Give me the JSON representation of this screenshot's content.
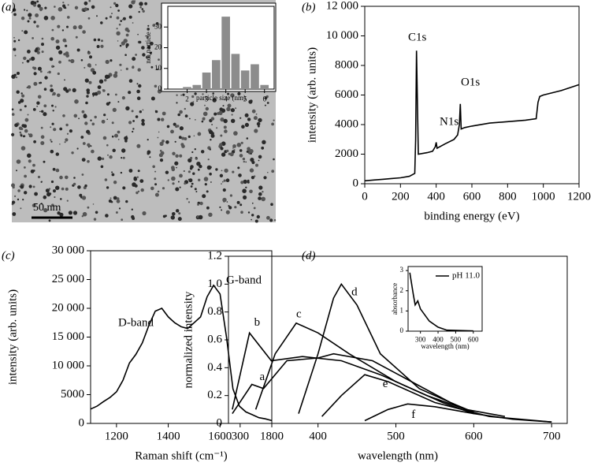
{
  "chart_data": [
    {
      "type": "histogram",
      "panel": "(a)",
      "scale_bar": "50 nm",
      "xlabel": "particle size (nm)",
      "ylabel": "no. particle",
      "bins": [
        1.75,
        2.25,
        2.75,
        3.25,
        3.75,
        4.25,
        4.75,
        5.25,
        5.75,
        6.25
      ],
      "values": [
        1,
        2,
        8,
        14,
        35,
        17,
        9,
        12,
        2
      ],
      "color": "#8c8c8c",
      "xlim": [
        1,
        6.5
      ],
      "xticks": [
        2,
        3,
        4,
        5,
        6
      ],
      "ylim": [
        0,
        40
      ],
      "yticks": [
        0,
        10,
        20,
        30
      ]
    },
    {
      "type": "line",
      "panel": "(b)",
      "xlabel": "binding energy (eV)",
      "ylabel": "intensity (arb. units)",
      "color": "#000000",
      "annotations": [
        "C1s",
        "N1s",
        "O1s"
      ],
      "x": [
        0,
        50,
        100,
        150,
        200,
        250,
        280,
        285,
        290,
        300,
        350,
        380,
        395,
        400,
        405,
        450,
        500,
        520,
        530,
        535,
        540,
        560,
        600,
        700,
        800,
        900,
        960,
        970,
        980,
        1000,
        1100,
        1200
      ],
      "values": [
        200,
        250,
        300,
        350,
        400,
        500,
        700,
        3000,
        9000,
        2000,
        2100,
        2200,
        2500,
        2800,
        2400,
        2700,
        3000,
        3300,
        4000,
        5400,
        3700,
        3800,
        3900,
        4100,
        4200,
        4300,
        4400,
        5500,
        5900,
        6000,
        6300,
        6700
      ],
      "xlim": [
        0,
        1200
      ],
      "xticks": [
        0,
        200,
        400,
        600,
        800,
        1000,
        1200
      ],
      "ylim": [
        0,
        12000
      ],
      "yticks": [
        0,
        2000,
        4000,
        6000,
        8000,
        {
          "value": 10000,
          "label": "10 000"
        },
        {
          "value": 12000,
          "label": "12 000"
        }
      ]
    },
    {
      "type": "line",
      "panel": "(c)",
      "xlabel": "Raman shift (cm⁻¹)",
      "ylabel": "intensity (arb. units)",
      "color": "#000000",
      "annotations": [
        "D-band",
        "G-band"
      ],
      "x": [
        1100,
        1125,
        1150,
        1175,
        1200,
        1225,
        1250,
        1275,
        1300,
        1325,
        1350,
        1375,
        1400,
        1425,
        1450,
        1475,
        1500,
        1525,
        1550,
        1575,
        1600,
        1625,
        1650,
        1675,
        1700,
        1725,
        1750,
        1775,
        1800
      ],
      "values": [
        2500,
        3000,
        3800,
        4500,
        5500,
        7500,
        10500,
        12000,
        14000,
        17000,
        19500,
        20000,
        18500,
        17500,
        16800,
        16500,
        17500,
        18500,
        22000,
        24000,
        22500,
        15000,
        6000,
        3000,
        2000,
        1500,
        1000,
        800,
        500
      ],
      "xlim": [
        1100,
        1800
      ],
      "xticks": [
        1200,
        1400,
        1600,
        1800
      ],
      "ylim": [
        0,
        30000
      ],
      "yticks": [
        0,
        5000,
        {
          "value": 10000,
          "label": "10 000"
        },
        {
          "value": 15000,
          "label": "15 000"
        },
        {
          "value": 20000,
          "label": "20 000"
        },
        {
          "value": 25000,
          "label": "25 000"
        },
        {
          "value": 30000,
          "label": "30 000"
        }
      ]
    },
    {
      "type": "line",
      "panel": "(d)",
      "xlabel": "wavelength (nm)",
      "ylabel": "normalized intensity",
      "series": [
        {
          "name": "a",
          "color": "#000000",
          "x": [
            290,
            315,
            330,
            360,
            400,
            420,
            470,
            520,
            570,
            600
          ],
          "values": [
            0.07,
            0.28,
            0.25,
            0.45,
            0.47,
            0.5,
            0.45,
            0.3,
            0.15,
            0.08
          ]
        },
        {
          "name": "b",
          "color": "#000000",
          "x": [
            290,
            312,
            340,
            380,
            430,
            480,
            540,
            590
          ],
          "values": [
            0.1,
            0.65,
            0.45,
            0.48,
            0.45,
            0.35,
            0.2,
            0.1
          ]
        },
        {
          "name": "c",
          "color": "#000000",
          "x": [
            320,
            345,
            372,
            400,
            440,
            500,
            560,
            600
          ],
          "values": [
            0.1,
            0.5,
            0.72,
            0.65,
            0.5,
            0.3,
            0.15,
            0.07
          ]
        },
        {
          "name": "d",
          "color": "#000000",
          "x": [
            375,
            400,
            420,
            430,
            450,
            480,
            530,
            590,
            640
          ],
          "values": [
            0.07,
            0.5,
            0.9,
            1.0,
            0.85,
            0.5,
            0.25,
            0.1,
            0.05
          ]
        },
        {
          "name": "e",
          "color": "#000000",
          "x": [
            405,
            430,
            460,
            490,
            550,
            620,
            700
          ],
          "values": [
            0.05,
            0.2,
            0.35,
            0.3,
            0.15,
            0.05,
            0.01
          ]
        },
        {
          "name": "f",
          "color": "#000000",
          "x": [
            460,
            490,
            515,
            550,
            600,
            650,
            700
          ],
          "values": [
            0.02,
            0.1,
            0.14,
            0.12,
            0.07,
            0.03,
            0.01
          ]
        }
      ],
      "xlim": [
        285,
        720
      ],
      "xticks": [
        300,
        400,
        500,
        600,
        700
      ],
      "ylim": [
        0,
        1.2
      ],
      "yticks": [
        0,
        0.2,
        0.4,
        0.6,
        0.8,
        {
          "value": 1,
          "label": "1.0"
        },
        1.2
      ]
    },
    {
      "type": "line",
      "xlabel": "wavelength (nm)",
      "ylabel": "absorbance",
      "series": [
        {
          "name": "pH 11.0",
          "color": "#000000",
          "x": [
            240,
            260,
            270,
            285,
            300,
            350,
            400,
            450,
            600
          ],
          "values": [
            2.9,
            1.8,
            1.3,
            1.5,
            1.1,
            0.5,
            0.2,
            0.05,
            0.01
          ]
        }
      ],
      "xlim": [
        230,
        650
      ],
      "xticks": [
        300,
        400,
        500,
        600
      ],
      "ylim": [
        0,
        3.2
      ],
      "yticks": [
        0,
        1,
        2,
        3
      ]
    }
  ]
}
